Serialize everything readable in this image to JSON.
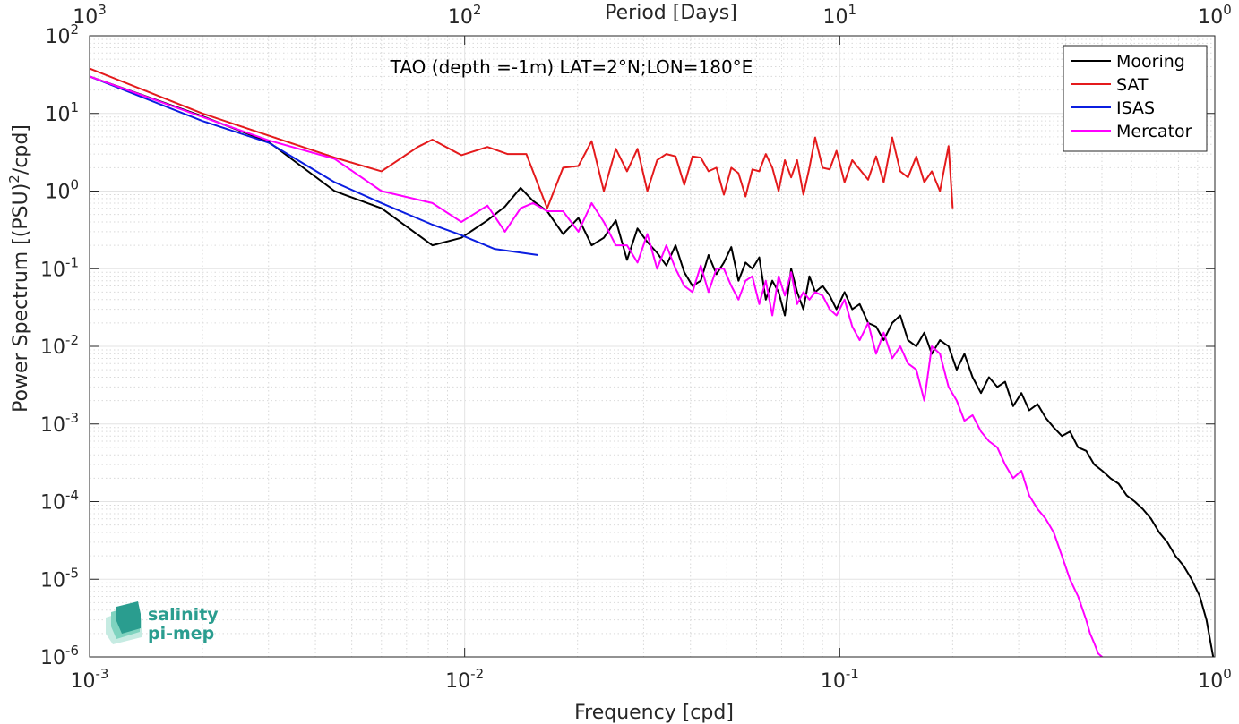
{
  "chart_data": {
    "type": "line",
    "title": "TAO (depth =-1m) LAT=2°N;LON=180°E",
    "xlabel": "Frequency [cpd]",
    "ylabel": "Power Spectrum [(PSU)",
    "ylabel_sup": "2",
    "ylabel_tail": "/cpd]",
    "top_xlabel": "Period [Days]",
    "x_scale": "log",
    "y_scale": "log",
    "xlim": [
      0.001,
      1
    ],
    "ylim": [
      1e-06,
      100
    ],
    "grid": true,
    "minor_grid": true,
    "legend_position": "top-right",
    "x_ticks": [
      {
        "v": 0.001,
        "base": "10",
        "exp": "-3"
      },
      {
        "v": 0.01,
        "base": "10",
        "exp": "-2"
      },
      {
        "v": 0.1,
        "base": "10",
        "exp": "-1"
      },
      {
        "v": 1,
        "base": "10",
        "exp": "0"
      }
    ],
    "y_ticks": [
      {
        "v": 100,
        "base": "10",
        "exp": "2"
      },
      {
        "v": 10,
        "base": "10",
        "exp": "1"
      },
      {
        "v": 1,
        "base": "10",
        "exp": "0"
      },
      {
        "v": 0.1,
        "base": "10",
        "exp": "-1"
      },
      {
        "v": 0.01,
        "base": "10",
        "exp": "-2"
      },
      {
        "v": 0.001,
        "base": "10",
        "exp": "-3"
      },
      {
        "v": 0.0001,
        "base": "10",
        "exp": "-4"
      },
      {
        "v": 1e-05,
        "base": "10",
        "exp": "-5"
      },
      {
        "v": 1e-06,
        "base": "10",
        "exp": "-6"
      }
    ],
    "top_ticks": [
      {
        "v": 0.001,
        "base": "10",
        "exp": "3"
      },
      {
        "v": 0.01,
        "base": "10",
        "exp": "2"
      },
      {
        "v": 0.1,
        "base": "10",
        "exp": "1"
      },
      {
        "v": 1,
        "base": "10",
        "exp": "0"
      }
    ],
    "series": [
      {
        "name": "Mooring",
        "color": "#000000",
        "x": [
          0.001,
          0.002,
          0.003,
          0.0045,
          0.006,
          0.0082,
          0.0098,
          0.0115,
          0.0128,
          0.0141,
          0.0152,
          0.0166,
          0.0183,
          0.0201,
          0.0218,
          0.0235,
          0.0253,
          0.0271,
          0.0289,
          0.0307,
          0.0326,
          0.0345,
          0.0365,
          0.0385,
          0.0405,
          0.0426,
          0.0447,
          0.0469,
          0.0491,
          0.0514,
          0.0537,
          0.0561,
          0.0585,
          0.061,
          0.0635,
          0.0661,
          0.0687,
          0.0714,
          0.0742,
          0.077,
          0.08,
          0.083,
          0.086,
          0.09,
          0.094,
          0.098,
          0.103,
          0.108,
          0.113,
          0.119,
          0.125,
          0.131,
          0.138,
          0.145,
          0.152,
          0.16,
          0.168,
          0.176,
          0.185,
          0.195,
          0.205,
          0.215,
          0.226,
          0.238,
          0.25,
          0.263,
          0.276,
          0.29,
          0.305,
          0.32,
          0.337,
          0.354,
          0.372,
          0.391,
          0.411,
          0.432,
          0.454,
          0.477,
          0.501,
          0.527,
          0.554,
          0.582,
          0.612,
          0.643,
          0.676,
          0.711,
          0.747,
          0.785,
          0.825,
          0.867,
          0.912,
          0.95,
          0.975,
          0.99
        ],
        "y": [
          30,
          9.2,
          4.3,
          1.0,
          0.6,
          0.2,
          0.25,
          0.42,
          0.63,
          1.1,
          0.75,
          0.55,
          0.28,
          0.45,
          0.2,
          0.25,
          0.42,
          0.13,
          0.33,
          0.22,
          0.16,
          0.11,
          0.2,
          0.09,
          0.06,
          0.07,
          0.15,
          0.085,
          0.12,
          0.19,
          0.07,
          0.12,
          0.1,
          0.14,
          0.04,
          0.07,
          0.05,
          0.025,
          0.1,
          0.05,
          0.03,
          0.08,
          0.05,
          0.06,
          0.045,
          0.03,
          0.05,
          0.03,
          0.035,
          0.02,
          0.018,
          0.012,
          0.02,
          0.025,
          0.012,
          0.01,
          0.015,
          0.008,
          0.012,
          0.01,
          0.005,
          0.008,
          0.004,
          0.0025,
          0.004,
          0.003,
          0.0035,
          0.0017,
          0.0025,
          0.0015,
          0.0018,
          0.0012,
          0.0009,
          0.0007,
          0.0008,
          0.0005,
          0.00045,
          0.0003,
          0.00025,
          0.0002,
          0.00017,
          0.00012,
          0.0001,
          8e-05,
          6e-05,
          4e-05,
          3e-05,
          2e-05,
          1.5e-05,
          1e-05,
          6e-06,
          3e-06,
          1.5e-06,
          1e-06
        ]
      },
      {
        "name": "SAT",
        "color": "#e41a1c",
        "x": [
          0.001,
          0.002,
          0.0045,
          0.006,
          0.0075,
          0.0082,
          0.0098,
          0.0115,
          0.013,
          0.0146,
          0.0166,
          0.0183,
          0.0201,
          0.0218,
          0.0235,
          0.0253,
          0.0271,
          0.0289,
          0.0307,
          0.0326,
          0.0345,
          0.0365,
          0.0385,
          0.0405,
          0.0426,
          0.0447,
          0.0469,
          0.0491,
          0.0514,
          0.0537,
          0.0561,
          0.0585,
          0.061,
          0.0635,
          0.0661,
          0.0687,
          0.0714,
          0.0742,
          0.077,
          0.08,
          0.083,
          0.086,
          0.09,
          0.094,
          0.098,
          0.103,
          0.108,
          0.113,
          0.119,
          0.125,
          0.131,
          0.138,
          0.145,
          0.152,
          0.16,
          0.168,
          0.176,
          0.185,
          0.195,
          0.2
        ],
        "y": [
          38,
          10,
          2.7,
          1.8,
          3.7,
          4.6,
          2.9,
          3.7,
          3.0,
          3.0,
          0.6,
          2.0,
          2.1,
          4.4,
          1.0,
          3.5,
          1.8,
          3.5,
          1.0,
          2.5,
          3.0,
          2.8,
          1.2,
          2.8,
          2.7,
          1.8,
          2.0,
          0.9,
          2.0,
          1.7,
          0.85,
          1.9,
          1.8,
          3.0,
          2.0,
          1.0,
          2.5,
          1.5,
          2.5,
          0.9,
          2.0,
          4.9,
          2.0,
          1.9,
          3.3,
          1.3,
          2.5,
          1.9,
          1.4,
          2.8,
          1.3,
          4.9,
          1.8,
          1.5,
          2.8,
          1.3,
          1.8,
          1.0,
          3.8,
          0.6
        ]
      },
      {
        "name": "ISAS",
        "color": "#0b1ee0",
        "x": [
          0.001,
          0.002,
          0.003,
          0.0045,
          0.006,
          0.0082,
          0.0098,
          0.012,
          0.0157
        ],
        "y": [
          30,
          8,
          4.2,
          1.3,
          0.7,
          0.37,
          0.27,
          0.18,
          0.15
        ]
      },
      {
        "name": "Mercator",
        "color": "#ff00ff",
        "x": [
          0.001,
          0.002,
          0.003,
          0.0045,
          0.006,
          0.0082,
          0.0098,
          0.0115,
          0.0128,
          0.0141,
          0.0152,
          0.0166,
          0.0183,
          0.0201,
          0.0218,
          0.0235,
          0.0253,
          0.0271,
          0.0289,
          0.0307,
          0.0326,
          0.0345,
          0.0365,
          0.0385,
          0.0405,
          0.0426,
          0.0447,
          0.0469,
          0.0491,
          0.0514,
          0.0537,
          0.0561,
          0.0585,
          0.061,
          0.0635,
          0.0661,
          0.0687,
          0.0714,
          0.0742,
          0.077,
          0.08,
          0.083,
          0.086,
          0.09,
          0.094,
          0.098,
          0.103,
          0.108,
          0.113,
          0.119,
          0.125,
          0.131,
          0.138,
          0.145,
          0.152,
          0.16,
          0.168,
          0.176,
          0.185,
          0.195,
          0.205,
          0.215,
          0.226,
          0.238,
          0.25,
          0.263,
          0.276,
          0.29,
          0.305,
          0.32,
          0.337,
          0.354,
          0.372,
          0.391,
          0.411,
          0.432,
          0.454,
          0.465,
          0.477,
          0.489,
          0.501
        ],
        "y": [
          30,
          9,
          4.5,
          2.6,
          1.0,
          0.7,
          0.4,
          0.65,
          0.3,
          0.6,
          0.7,
          0.55,
          0.55,
          0.3,
          0.7,
          0.4,
          0.2,
          0.2,
          0.12,
          0.28,
          0.1,
          0.2,
          0.1,
          0.06,
          0.05,
          0.11,
          0.05,
          0.1,
          0.1,
          0.06,
          0.04,
          0.07,
          0.08,
          0.035,
          0.07,
          0.025,
          0.08,
          0.045,
          0.09,
          0.035,
          0.05,
          0.04,
          0.05,
          0.045,
          0.03,
          0.025,
          0.04,
          0.018,
          0.012,
          0.02,
          0.008,
          0.015,
          0.007,
          0.01,
          0.006,
          0.005,
          0.002,
          0.01,
          0.008,
          0.003,
          0.002,
          0.0011,
          0.0013,
          0.0008,
          0.0006,
          0.0005,
          0.0003,
          0.0002,
          0.00025,
          0.00012,
          8e-05,
          6e-05,
          4e-05,
          2e-05,
          1e-05,
          6e-06,
          3e-06,
          2e-06,
          1.5e-06,
          1.1e-06,
          1e-06
        ]
      }
    ]
  },
  "logo": {
    "line1": "salinity",
    "line2": "pi-mep",
    "color": "#2a9d8f"
  }
}
